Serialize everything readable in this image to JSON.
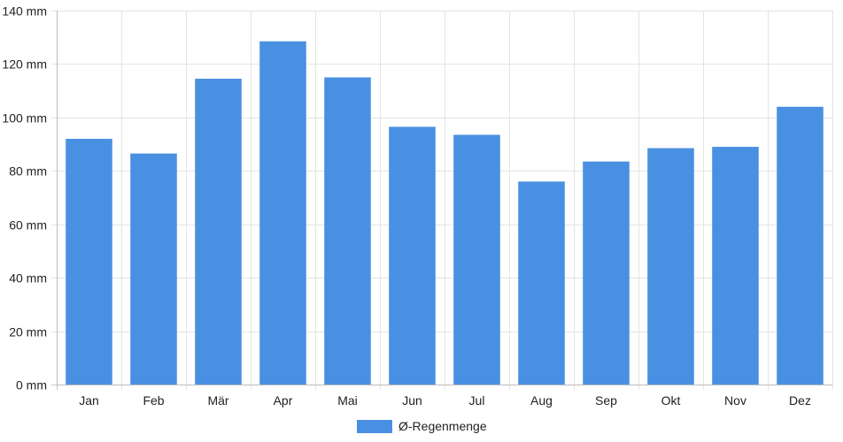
{
  "chart_data": {
    "type": "bar",
    "categories": [
      "Jan",
      "Feb",
      "Mär",
      "Apr",
      "Mai",
      "Jun",
      "Jul",
      "Aug",
      "Sep",
      "Okt",
      "Nov",
      "Dez"
    ],
    "series": [
      {
        "name": "Ø-Regenmenge",
        "values": [
          92,
          86.5,
          114.5,
          128.5,
          115,
          96.5,
          93.5,
          76,
          83.5,
          88.5,
          89,
          104
        ],
        "color": "#4a90e2"
      }
    ],
    "title": "",
    "xlabel": "",
    "ylabel": "",
    "y_unit": "mm",
    "ylim": [
      0,
      140
    ],
    "y_ticks": [
      0,
      20,
      40,
      60,
      80,
      100,
      120,
      140
    ],
    "y_tick_labels": [
      "0 mm",
      "20 mm",
      "40 mm",
      "60 mm",
      "80 mm",
      "100 mm",
      "120 mm",
      "140 mm"
    ],
    "grid": true,
    "legend": {
      "position": "bottom-center"
    }
  }
}
